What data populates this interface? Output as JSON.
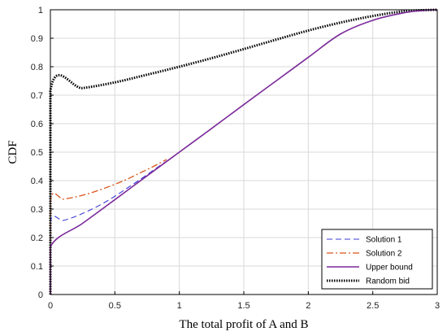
{
  "chart_data": {
    "type": "line",
    "title": "",
    "xlabel": "The total profit of A and B",
    "ylabel": "CDF",
    "xlim": [
      0,
      3
    ],
    "ylim": [
      0,
      1
    ],
    "xticks": [
      0,
      0.5,
      1,
      1.5,
      2,
      2.5,
      3
    ],
    "yticks": [
      0,
      0.1,
      0.2,
      0.3,
      0.4,
      0.5,
      0.6,
      0.7,
      0.8,
      0.9,
      1
    ],
    "xtick_labels": [
      "0",
      "0.5",
      "1",
      "1.5",
      "2",
      "2.5",
      "3"
    ],
    "ytick_labels": [
      "0",
      "0.1",
      "0.2",
      "0.3",
      "0.4",
      "0.5",
      "0.6",
      "0.7",
      "0.8",
      "0.9",
      "1"
    ],
    "grid": true,
    "legend_position": "bottom-right",
    "series": [
      {
        "name": "Solution 1",
        "color": "#3b3bd6",
        "style": "dashed",
        "x": [
          0,
          0,
          0.1,
          0.2,
          0.3,
          0.4,
          0.5,
          0.6,
          0.7,
          0.8,
          0.9,
          1.0
        ],
        "y": [
          0,
          0.255,
          0.26,
          0.275,
          0.295,
          0.318,
          0.345,
          0.375,
          0.405,
          0.437,
          0.468,
          0.5
        ]
      },
      {
        "name": "Solution 2",
        "color": "#d9541a",
        "style": "dashdot",
        "x": [
          0,
          0,
          0.1,
          0.2,
          0.3,
          0.4,
          0.5,
          0.6,
          0.7,
          0.8,
          0.9
        ],
        "y": [
          0,
          0.33,
          0.335,
          0.343,
          0.355,
          0.37,
          0.387,
          0.406,
          0.428,
          0.45,
          0.474
        ]
      },
      {
        "name": "Upper bound",
        "color": "#7b2a9a",
        "style": "solid",
        "x": [
          0,
          0,
          0.25,
          0.5,
          0.75,
          1.0,
          1.25,
          1.5,
          1.75,
          2.0,
          2.25,
          2.5,
          2.75,
          2.9,
          3.0
        ],
        "y": [
          0,
          0.167,
          0.25,
          0.333,
          0.417,
          0.5,
          0.583,
          0.667,
          0.75,
          0.833,
          0.915,
          0.963,
          0.99,
          0.998,
          1.0
        ]
      },
      {
        "name": "Random bid",
        "color": "#000000",
        "style": "dotted",
        "x": [
          0,
          0,
          0.25,
          0.5,
          0.75,
          1.0,
          1.25,
          1.5,
          1.75,
          2.0,
          2.25,
          2.5,
          2.75,
          3.0
        ],
        "y": [
          0,
          0.715,
          0.725,
          0.745,
          0.772,
          0.8,
          0.83,
          0.862,
          0.895,
          0.927,
          0.955,
          0.978,
          0.995,
          1.0
        ]
      }
    ]
  }
}
